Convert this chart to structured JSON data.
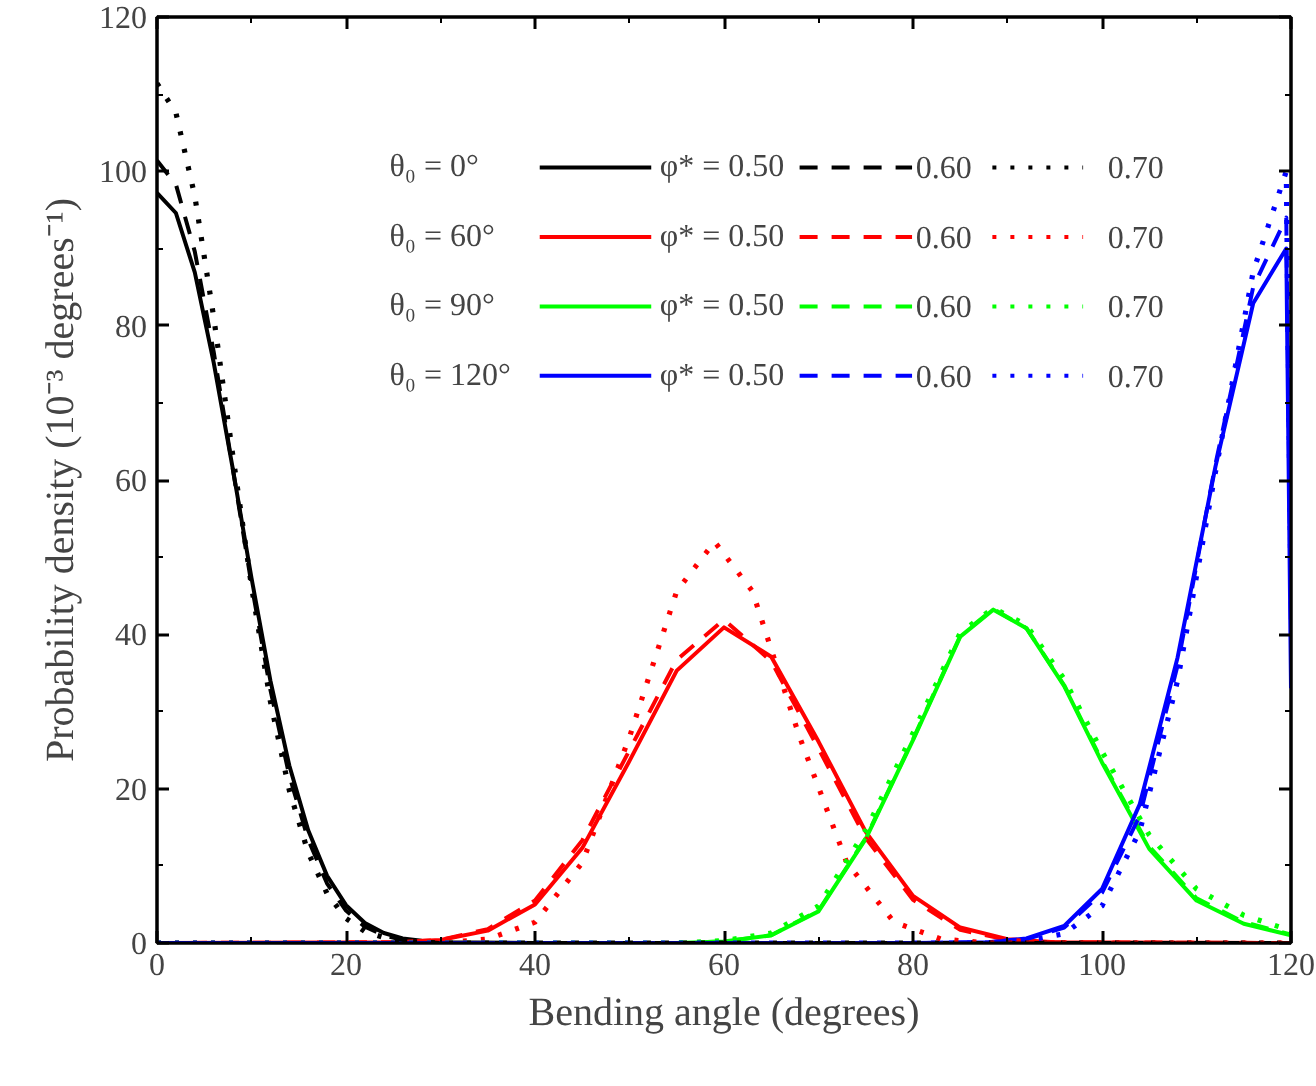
{
  "chart_data": {
    "type": "line",
    "xlabel": "Bending angle (degrees)",
    "ylabel": "Probability density (10⁻³ degrees⁻¹)",
    "xlim": [
      0,
      120
    ],
    "ylim": [
      0,
      120
    ],
    "xticks": [
      0,
      20,
      40,
      60,
      80,
      100,
      120
    ],
    "yticks": [
      0,
      20,
      40,
      60,
      80,
      100,
      120
    ],
    "grid": false,
    "legend": "top",
    "annotations": [
      "θ₀ = 0°",
      "θ₀ = 60°",
      "θ₀ = 90°",
      "θ₀ = 120°"
    ],
    "series": [
      {
        "name": "φ* = 0.50",
        "color": "#000000",
        "line_style": "solid",
        "x": [
          0,
          2,
          4,
          6,
          8,
          10,
          12,
          14,
          16,
          18,
          20,
          22,
          24,
          26,
          28,
          30,
          40,
          120
        ],
        "values": [
          97.2,
          94.6,
          86.9,
          75.2,
          61.6,
          47.3,
          34.0,
          23.0,
          14.6,
          8.7,
          4.9,
          2.6,
          1.3,
          0.6,
          0.3,
          0.1,
          0,
          0
        ]
      },
      {
        "name": "0.60",
        "color": "#000000",
        "line_style": "dashed",
        "x": [
          0,
          2,
          4,
          6,
          8,
          10,
          12,
          14,
          16,
          18,
          20,
          22,
          24,
          26,
          28,
          30,
          40,
          120
        ],
        "values": [
          101.4,
          98.3,
          89.6,
          76.6,
          61.6,
          46.5,
          32.8,
          21.7,
          13.4,
          7.7,
          4.2,
          2.1,
          1.0,
          0.4,
          0.2,
          0,
          0,
          0
        ]
      },
      {
        "name": "0.70",
        "color": "#000000",
        "line_style": "dotted",
        "x": [
          0,
          2,
          4,
          6,
          8,
          10,
          12,
          14,
          16,
          18,
          20,
          22,
          24,
          26,
          28,
          30,
          40,
          120
        ],
        "values": [
          111.4,
          107.6,
          96.8,
          81.1,
          63.4,
          46.2,
          31.3,
          19.8,
          11.7,
          6.4,
          3.2,
          1.5,
          0.7,
          0.3,
          0.1,
          0,
          0,
          0
        ]
      },
      {
        "name": "φ* = 0.50",
        "color": "#ff0000",
        "line_style": "solid",
        "x": [
          0,
          25,
          30,
          35,
          40,
          45,
          50,
          55,
          60,
          65,
          70,
          75,
          80,
          85,
          90,
          95,
          120
        ],
        "values": [
          0,
          0.1,
          0.4,
          1.6,
          5.0,
          12.3,
          23.6,
          35.3,
          40.9,
          37.1,
          26.1,
          14.4,
          6.1,
          2.0,
          0.5,
          0.1,
          0
        ]
      },
      {
        "name": "0.60",
        "color": "#ff0000",
        "line_style": "dashed",
        "x": [
          0,
          25,
          30,
          35,
          40,
          45,
          50,
          55,
          60,
          65,
          70,
          75,
          80,
          85,
          90,
          95,
          120
        ],
        "values": [
          0,
          0.1,
          0.4,
          1.8,
          5.5,
          13.3,
          25.0,
          36.7,
          41.9,
          36.5,
          25.2,
          13.6,
          5.6,
          1.7,
          0.4,
          0.1,
          0
        ]
      },
      {
        "name": "0.70",
        "color": "#ff0000",
        "line_style": "dotted",
        "x": [
          0,
          30,
          35,
          40,
          45,
          50,
          55,
          59,
          63,
          68,
          73,
          78,
          83,
          88,
          120
        ],
        "values": [
          0,
          0,
          0.5,
          2.7,
          10.4,
          26.7,
          45.6,
          52.0,
          45.6,
          26.7,
          10.4,
          2.7,
          0.5,
          0,
          0
        ]
      },
      {
        "name": "φ* = 0.50",
        "color": "#00ff00",
        "line_style": "solid",
        "x": [
          0,
          55,
          60,
          65,
          70,
          75,
          80,
          85,
          88.5,
          92,
          96,
          100,
          105,
          110,
          115,
          120
        ],
        "values": [
          0,
          0,
          0.2,
          1.0,
          4.1,
          13.5,
          26.3,
          39.7,
          43.2,
          40.8,
          33.3,
          23.4,
          12.2,
          5.5,
          2.5,
          1.0
        ]
      },
      {
        "name": "0.60",
        "color": "#00ff00",
        "line_style": "dashed",
        "x": [
          0,
          55,
          60,
          65,
          70,
          75,
          80,
          85,
          88.5,
          92,
          96,
          100,
          105,
          110,
          115,
          120
        ],
        "values": [
          0,
          0,
          0.2,
          1.0,
          4.2,
          13.6,
          26.4,
          39.8,
          43.3,
          40.8,
          33.4,
          23.6,
          12.5,
          5.8,
          2.7,
          1.1
        ]
      },
      {
        "name": "0.70",
        "color": "#00ff00",
        "line_style": "dotted",
        "x": [
          0,
          55,
          60,
          65,
          70,
          75,
          80,
          85,
          88.5,
          92,
          96,
          100,
          105,
          110,
          115,
          120
        ],
        "values": [
          0,
          0,
          0.3,
          1.3,
          4.8,
          14.6,
          27.2,
          40.2,
          43.4,
          41.2,
          34.2,
          24.8,
          14.0,
          7.0,
          3.6,
          1.6
        ]
      },
      {
        "name": "φ* = 0.50",
        "color": "#0000ff",
        "line_style": "solid",
        "x": [
          0,
          80,
          88,
          92,
          96,
          100,
          104,
          108,
          112,
          116,
          119.5,
          120
        ],
        "values": [
          0,
          0,
          0.1,
          0.6,
          2.2,
          7.0,
          18.0,
          37.0,
          61.7,
          82.9,
          90.0,
          33.0
        ]
      },
      {
        "name": "0.60",
        "color": "#0000ff",
        "line_style": "dashed",
        "x": [
          0,
          80,
          88,
          92,
          96,
          100,
          104,
          108,
          112,
          116,
          119.5,
          120
        ],
        "values": [
          0,
          0,
          0.1,
          0.5,
          2.0,
          6.5,
          16.5,
          36.0,
          62.0,
          85.0,
          94.0,
          40.0
        ]
      },
      {
        "name": "0.70",
        "color": "#0000ff",
        "line_style": "dotted",
        "x": [
          0,
          80,
          88,
          92,
          96,
          100,
          104,
          108,
          112,
          116,
          119.5,
          120
        ],
        "values": [
          0,
          0,
          0,
          0.3,
          1.2,
          4.8,
          14.5,
          34.0,
          61.0,
          87.0,
          100.0,
          45.0
        ]
      }
    ]
  }
}
